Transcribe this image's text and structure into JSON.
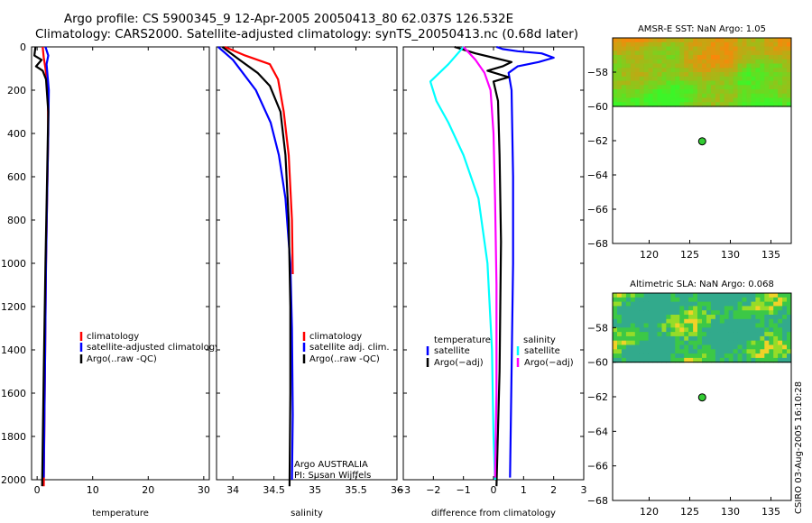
{
  "header": {
    "title_line1": "Argo profile: CS 5900345_9 12-Apr-2005 20050413_80 62.037S 126.532E",
    "title_line2": "Climatology: CARS2000. Satellite-adjusted climatology: synTS_20050413.nc (0.68d later)"
  },
  "stamp": "CSIRO 03-Aug-2005 16:10:28",
  "colors": {
    "climatology": "#ff0000",
    "satellite": "#0000ff",
    "argo": "#000000",
    "cyan": "#00ffff",
    "magenta": "#ff00ff",
    "float_marker": "#33cc33"
  },
  "chart_data": [
    {
      "type": "line",
      "id": "temperature",
      "xlabel": "temperature",
      "ylabel": "",
      "xlim": [
        -1,
        31
      ],
      "ylim": [
        2000,
        0
      ],
      "xticks": [
        0,
        10,
        20,
        30
      ],
      "yticks": [
        0,
        200,
        400,
        600,
        800,
        1000,
        1200,
        1400,
        1600,
        1800,
        2000
      ],
      "legend": [
        "climatology",
        "satellite-adjusted climatology",
        "Argo(..raw -QC)"
      ],
      "series": [
        {
          "name": "climatology",
          "color": "#ff0000",
          "x": [
            1.0,
            1.2,
            1.5,
            1.9,
            2.0,
            1.8,
            1.6,
            1.4,
            1.2
          ],
          "y": [
            0,
            50,
            100,
            200,
            400,
            700,
            1000,
            1500,
            2030
          ]
        },
        {
          "name": "satellite-adjusted climatology",
          "color": "#0000ff",
          "x": [
            1.5,
            2.0,
            1.7,
            2.1,
            2.0,
            1.8,
            1.6,
            1.4,
            1.2
          ],
          "y": [
            0,
            40,
            80,
            200,
            400,
            700,
            1000,
            1500,
            1990
          ]
        },
        {
          "name": "Argo(..raw -QC)",
          "color": "#000000",
          "x": [
            -0.3,
            -0.5,
            0.8,
            -0.2,
            1.0,
            1.6,
            2.0,
            1.8,
            1.5,
            1.2,
            0.9
          ],
          "y": [
            0,
            40,
            60,
            90,
            110,
            150,
            300,
            600,
            1000,
            1500,
            2030
          ]
        }
      ]
    },
    {
      "type": "line",
      "id": "salinity",
      "xlabel": "salinity",
      "xlim": [
        33.8,
        36.0
      ],
      "ylim": [
        2000,
        0
      ],
      "xticks": [
        34,
        34.5,
        35,
        35.5,
        36
      ],
      "xtick_labels": [
        "34",
        "34.5",
        "35",
        "35.5",
        "36"
      ],
      "legend": [
        "climatology",
        "satellite adj. clim.",
        "Argo(..raw -QC)"
      ],
      "notes": [
        "Argo AUSTRALIA",
        "PI: Susan Wijffels"
      ],
      "series": [
        {
          "name": "climatology",
          "color": "#ff0000",
          "x": [
            33.9,
            34.15,
            34.45,
            34.55,
            34.62,
            34.68,
            34.72,
            34.73
          ],
          "y": [
            0,
            40,
            80,
            150,
            300,
            500,
            800,
            1050
          ]
        },
        {
          "name": "satellite adj. clim.",
          "color": "#0000ff",
          "x": [
            33.82,
            34.0,
            34.12,
            34.28,
            34.46,
            34.56,
            34.64,
            34.7,
            34.72,
            34.73,
            34.72
          ],
          "y": [
            0,
            60,
            120,
            200,
            350,
            500,
            700,
            1000,
            1300,
            1700,
            2000
          ]
        },
        {
          "name": "Argo(..raw -QC)",
          "color": "#000000",
          "x": [
            33.87,
            34.08,
            34.3,
            34.45,
            34.58,
            34.64,
            34.68,
            34.7,
            34.7,
            34.69
          ],
          "y": [
            0,
            60,
            120,
            180,
            300,
            500,
            800,
            1200,
            1600,
            2030
          ]
        }
      ]
    },
    {
      "type": "line",
      "id": "difference",
      "xlabel": "difference from climatology",
      "xlim": [
        -3,
        3
      ],
      "ylim": [
        2000,
        0
      ],
      "xticks": [
        -3,
        -2,
        -1,
        0,
        1,
        2,
        3
      ],
      "xtick_labels": [
        "−3",
        "−2",
        "−1",
        "0",
        "1",
        "2",
        "3"
      ],
      "legend_temperature": {
        "title": "temperature",
        "items": [
          "satellite",
          "Argo(−adj)"
        ]
      },
      "legend_salinity": {
        "title": "salinity",
        "items": [
          "satellite",
          "Argo(−adj)"
        ]
      },
      "series": [
        {
          "name": "temperature satellite",
          "color": "#0000ff",
          "x": [
            0.1,
            0.3,
            0.8,
            1.6,
            2.0,
            1.5,
            0.8,
            0.5,
            0.6,
            0.65,
            0.65,
            0.6,
            0.55
          ],
          "y": [
            0,
            10,
            20,
            30,
            50,
            70,
            90,
            120,
            200,
            600,
            1000,
            1500,
            1990
          ]
        },
        {
          "name": "temperature Argo(−adj)",
          "color": "#000000",
          "x": [
            -1.3,
            -0.6,
            0.0,
            0.6,
            0.3,
            -0.2,
            0.5,
            0.0,
            0.15,
            0.2,
            0.25,
            0.2,
            0.1
          ],
          "y": [
            0,
            30,
            50,
            70,
            90,
            110,
            140,
            160,
            250,
            500,
            900,
            1500,
            2030
          ]
        },
        {
          "name": "salinity satellite",
          "color": "#00ffff",
          "x": [
            -1.0,
            -1.5,
            -2.1,
            -1.9,
            -1.5,
            -1.0,
            -0.5,
            -0.2,
            -0.05,
            0.0,
            0.05
          ],
          "y": [
            0,
            80,
            160,
            250,
            350,
            500,
            700,
            1000,
            1400,
            1800,
            2000
          ]
        },
        {
          "name": "salinity Argo(−adj)",
          "color": "#ff00ff",
          "x": [
            -1.0,
            -0.6,
            -0.3,
            -0.1,
            0.0,
            0.05,
            0.1,
            0.1,
            0.05
          ],
          "y": [
            0,
            60,
            120,
            200,
            400,
            700,
            1100,
            1600,
            1990
          ]
        }
      ]
    },
    {
      "type": "heatmap",
      "id": "sst_map",
      "title": "AMSR-E SST: NaN Argo: 1.05",
      "xlim": [
        115.5,
        137.5
      ],
      "ylim": [
        -68,
        -56
      ],
      "xticks": [
        120,
        125,
        130,
        135
      ],
      "yticks": [
        -58,
        -60,
        -62,
        -64,
        -66,
        -68
      ],
      "coverage_south_limit": -60,
      "float_position": {
        "lon": 126.532,
        "lat": -62.037
      },
      "palette": "warm"
    },
    {
      "type": "heatmap",
      "id": "sla_map",
      "title": "Altimetric SLA: NaN Argo: 0.068",
      "xlim": [
        115.5,
        137.5
      ],
      "ylim": [
        -68,
        -56
      ],
      "xticks": [
        120,
        125,
        130,
        135
      ],
      "yticks": [
        -58,
        -60,
        -62,
        -64,
        -66,
        -68
      ],
      "coverage_south_limit": -60,
      "float_position": {
        "lon": 126.532,
        "lat": -62.037
      },
      "palette": "cool"
    }
  ]
}
